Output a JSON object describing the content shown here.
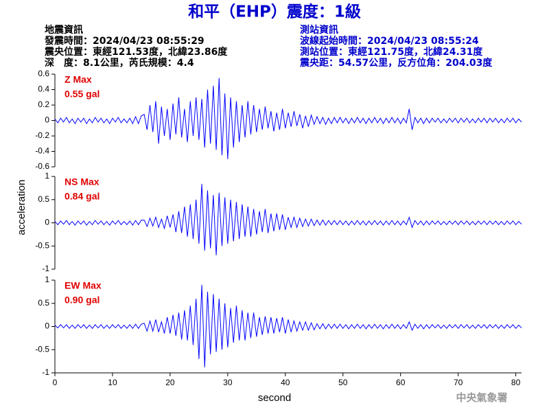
{
  "header": {
    "title": "和平（EHP）震度：1級",
    "left_info": [
      "地震資訊",
      "發震時間：2024/04/23 08:55:29",
      "震央位置：東經121.53度，北緯23.86度",
      "深　度：8.1公里，芮氏規模：4.4"
    ],
    "right_info": [
      "測站資訊",
      "波線起始時間：2024/04/23 08:55:24",
      "測站位置：東經121.75度，北緯24.31度",
      "震央距：54.57公里，反方位角：204.03度"
    ]
  },
  "axes": {
    "xlabel": "second",
    "ylabel": "acceleration"
  },
  "footer": "中央氣象署",
  "chart_data": [
    {
      "type": "line",
      "annotations": [
        "Z Max",
        "0.55 gal"
      ],
      "xlim": [
        0,
        81
      ],
      "ylim": [
        -0.6,
        0.6
      ],
      "yticks": [
        0.6,
        0.4,
        0.2,
        0,
        -0.2,
        -0.4,
        -0.6
      ],
      "x": [
        0,
        0.5,
        1,
        1.5,
        2,
        2.5,
        3,
        3.5,
        4,
        4.5,
        5,
        5.5,
        6,
        6.5,
        7,
        7.5,
        8,
        8.5,
        9,
        9.5,
        10,
        10.5,
        11,
        11.5,
        12,
        12.5,
        13,
        13.5,
        14,
        14.5,
        15,
        15.5,
        16,
        16.5,
        17,
        17.5,
        18,
        18.5,
        19,
        19.5,
        20,
        20.5,
        21,
        21.5,
        22,
        22.5,
        23,
        23.5,
        24,
        24.5,
        25,
        25.5,
        26,
        26.5,
        27,
        27.5,
        28,
        28.5,
        29,
        29.5,
        30,
        30.5,
        31,
        31.5,
        32,
        32.5,
        33,
        33.5,
        34,
        34.5,
        35,
        35.5,
        36,
        36.5,
        37,
        37.5,
        38,
        38.5,
        39,
        39.5,
        40,
        40.5,
        41,
        41.5,
        42,
        42.5,
        43,
        43.5,
        44,
        44.5,
        45,
        45.5,
        46,
        46.5,
        47,
        47.5,
        48,
        48.5,
        49,
        49.5,
        50,
        50.5,
        51,
        51.5,
        52,
        52.5,
        53,
        53.5,
        54,
        54.5,
        55,
        55.5,
        56,
        56.5,
        57,
        57.5,
        58,
        58.5,
        59,
        59.5,
        60,
        60.5,
        61,
        61.5,
        62,
        62.5,
        63,
        63.5,
        64,
        64.5,
        65,
        65.5,
        66,
        66.5,
        67,
        67.5,
        68,
        68.5,
        69,
        69.5,
        70,
        70.5,
        71,
        71.5,
        72,
        72.5,
        73,
        73.5,
        74,
        74.5,
        75,
        75.5,
        76,
        76.5,
        77,
        77.5,
        78,
        78.5,
        79,
        79.5,
        80,
        80.5,
        81
      ],
      "series": [
        {
          "color": "#0000ff",
          "values": [
            0.02,
            -0.03,
            0.03,
            -0.02,
            0.04,
            -0.03,
            0.02,
            -0.04,
            0.03,
            -0.02,
            0.03,
            -0.04,
            0.02,
            -0.03,
            0.04,
            -0.02,
            0.03,
            -0.03,
            0.02,
            -0.04,
            0.03,
            -0.02,
            0.04,
            -0.03,
            0.02,
            -0.03,
            0.03,
            -0.04,
            0.05,
            -0.04,
            0.06,
            0.08,
            -0.12,
            0.2,
            -0.15,
            0.25,
            -0.3,
            0.18,
            -0.2,
            0.15,
            -0.25,
            0.22,
            -0.18,
            0.3,
            -0.22,
            0.15,
            -0.28,
            0.25,
            -0.2,
            0.3,
            -0.25,
            0.28,
            -0.35,
            0.4,
            -0.3,
            0.45,
            -0.38,
            0.55,
            -0.45,
            0.35,
            -0.5,
            0.3,
            -0.35,
            0.25,
            -0.28,
            0.2,
            -0.22,
            0.25,
            -0.18,
            0.2,
            -0.15,
            0.15,
            -0.12,
            0.18,
            -0.1,
            0.12,
            -0.14,
            0.1,
            -0.12,
            0.15,
            -0.1,
            0.1,
            -0.08,
            0.12,
            -0.07,
            0.08,
            -0.1,
            0.06,
            -0.08,
            0.07,
            -0.05,
            0.05,
            -0.04,
            0.04,
            -0.05,
            0.03,
            -0.04,
            0.04,
            -0.03,
            0.04,
            -0.03,
            0.03,
            -0.04,
            0.03,
            -0.03,
            0.04,
            -0.03,
            0.03,
            -0.04,
            0.03,
            -0.03,
            0.04,
            -0.03,
            0.03,
            -0.04,
            0.03,
            -0.03,
            0.04,
            -0.03,
            0.03,
            -0.04,
            0.03,
            -0.03,
            0.15,
            -0.12,
            0.04,
            -0.03,
            0.03,
            -0.04,
            0.03,
            -0.03,
            0.03,
            -0.02,
            0.03,
            -0.03,
            0.02,
            -0.03,
            0.03,
            -0.02,
            0.03,
            -0.03,
            0.03,
            -0.02,
            0.03,
            -0.03,
            0.02,
            -0.03,
            0.03,
            -0.02,
            0.03,
            -0.03,
            0.03,
            -0.02,
            0.03,
            -0.03,
            0.02,
            -0.03,
            0.03,
            -0.02,
            0.03,
            -0.03,
            0.02,
            -0.02
          ]
        }
      ]
    },
    {
      "type": "line",
      "annotations": [
        "NS Max",
        "0.84 gal"
      ],
      "xlim": [
        0,
        81
      ],
      "ylim": [
        -1,
        1
      ],
      "yticks": [
        1,
        0.5,
        0,
        -0.5,
        -1
      ],
      "x": [
        0,
        0.5,
        1,
        1.5,
        2,
        2.5,
        3,
        3.5,
        4,
        4.5,
        5,
        5.5,
        6,
        6.5,
        7,
        7.5,
        8,
        8.5,
        9,
        9.5,
        10,
        10.5,
        11,
        11.5,
        12,
        12.5,
        13,
        13.5,
        14,
        14.5,
        15,
        15.5,
        16,
        16.5,
        17,
        17.5,
        18,
        18.5,
        19,
        19.5,
        20,
        20.5,
        21,
        21.5,
        22,
        22.5,
        23,
        23.5,
        24,
        24.5,
        25,
        25.5,
        26,
        26.5,
        27,
        27.5,
        28,
        28.5,
        29,
        29.5,
        30,
        30.5,
        31,
        31.5,
        32,
        32.5,
        33,
        33.5,
        34,
        34.5,
        35,
        35.5,
        36,
        36.5,
        37,
        37.5,
        38,
        38.5,
        39,
        39.5,
        40,
        40.5,
        41,
        41.5,
        42,
        42.5,
        43,
        43.5,
        44,
        44.5,
        45,
        45.5,
        46,
        46.5,
        47,
        47.5,
        48,
        48.5,
        49,
        49.5,
        50,
        50.5,
        51,
        51.5,
        52,
        52.5,
        53,
        53.5,
        54,
        54.5,
        55,
        55.5,
        56,
        56.5,
        57,
        57.5,
        58,
        58.5,
        59,
        59.5,
        60,
        60.5,
        61,
        61.5,
        62,
        62.5,
        63,
        63.5,
        64,
        64.5,
        65,
        65.5,
        66,
        66.5,
        67,
        67.5,
        68,
        68.5,
        69,
        69.5,
        70,
        70.5,
        71,
        71.5,
        72,
        72.5,
        73,
        73.5,
        74,
        74.5,
        75,
        75.5,
        76,
        76.5,
        77,
        77.5,
        78,
        78.5,
        79,
        79.5,
        80,
        80.5,
        81
      ],
      "series": [
        {
          "color": "#0000ff",
          "values": [
            0.03,
            -0.04,
            0.04,
            -0.03,
            0.05,
            -0.04,
            0.03,
            -0.05,
            0.04,
            -0.03,
            0.04,
            -0.05,
            0.03,
            -0.04,
            0.05,
            -0.03,
            0.04,
            -0.04,
            0.03,
            -0.05,
            0.04,
            -0.03,
            0.05,
            -0.04,
            0.03,
            -0.04,
            0.04,
            -0.05,
            0.05,
            -0.04,
            0.06,
            0.06,
            -0.08,
            0.1,
            -0.07,
            0.12,
            -0.1,
            0.08,
            -0.12,
            0.15,
            -0.1,
            0.18,
            -0.2,
            0.25,
            -0.22,
            0.35,
            -0.3,
            0.4,
            -0.35,
            0.5,
            -0.45,
            0.84,
            -0.6,
            0.7,
            -0.55,
            0.6,
            -0.7,
            0.65,
            -0.5,
            0.55,
            -0.45,
            0.5,
            -0.4,
            0.45,
            -0.35,
            0.4,
            -0.3,
            0.35,
            -0.3,
            0.3,
            -0.25,
            0.25,
            -0.2,
            0.3,
            -0.22,
            0.2,
            -0.18,
            0.2,
            -0.15,
            0.18,
            -0.15,
            0.12,
            -0.1,
            0.12,
            -0.1,
            0.1,
            -0.08,
            0.08,
            -0.07,
            0.08,
            -0.06,
            0.06,
            -0.05,
            0.06,
            -0.05,
            0.05,
            -0.04,
            0.05,
            -0.04,
            0.05,
            -0.04,
            0.04,
            -0.05,
            0.04,
            -0.04,
            0.05,
            -0.04,
            0.04,
            -0.05,
            0.04,
            -0.04,
            0.05,
            -0.04,
            0.04,
            -0.05,
            0.04,
            -0.04,
            0.05,
            -0.04,
            0.04,
            -0.05,
            0.04,
            -0.04,
            0.12,
            -0.1,
            0.05,
            -0.04,
            0.04,
            -0.05,
            0.04,
            -0.04,
            0.04,
            -0.03,
            0.04,
            -0.04,
            0.03,
            -0.04,
            0.04,
            -0.03,
            0.04,
            -0.04,
            0.04,
            -0.03,
            0.04,
            -0.04,
            0.03,
            -0.04,
            0.04,
            -0.03,
            0.04,
            -0.04,
            0.04,
            -0.03,
            0.04,
            -0.04,
            0.03,
            -0.04,
            0.04,
            -0.03,
            0.04,
            -0.04,
            0.03,
            -0.03
          ]
        }
      ]
    },
    {
      "type": "line",
      "annotations": [
        "EW Max",
        "0.90 gal"
      ],
      "xlim": [
        0,
        81
      ],
      "ylim": [
        -1,
        1
      ],
      "yticks": [
        1,
        0.5,
        0,
        -0.5,
        -1
      ],
      "xticks": [
        0,
        10,
        20,
        30,
        40,
        50,
        60,
        70,
        80
      ],
      "x": [
        0,
        0.5,
        1,
        1.5,
        2,
        2.5,
        3,
        3.5,
        4,
        4.5,
        5,
        5.5,
        6,
        6.5,
        7,
        7.5,
        8,
        8.5,
        9,
        9.5,
        10,
        10.5,
        11,
        11.5,
        12,
        12.5,
        13,
        13.5,
        14,
        14.5,
        15,
        15.5,
        16,
        16.5,
        17,
        17.5,
        18,
        18.5,
        19,
        19.5,
        20,
        20.5,
        21,
        21.5,
        22,
        22.5,
        23,
        23.5,
        24,
        24.5,
        25,
        25.5,
        26,
        26.5,
        27,
        27.5,
        28,
        28.5,
        29,
        29.5,
        30,
        30.5,
        31,
        31.5,
        32,
        32.5,
        33,
        33.5,
        34,
        34.5,
        35,
        35.5,
        36,
        36.5,
        37,
        37.5,
        38,
        38.5,
        39,
        39.5,
        40,
        40.5,
        41,
        41.5,
        42,
        42.5,
        43,
        43.5,
        44,
        44.5,
        45,
        45.5,
        46,
        46.5,
        47,
        47.5,
        48,
        48.5,
        49,
        49.5,
        50,
        50.5,
        51,
        51.5,
        52,
        52.5,
        53,
        53.5,
        54,
        54.5,
        55,
        55.5,
        56,
        56.5,
        57,
        57.5,
        58,
        58.5,
        59,
        59.5,
        60,
        60.5,
        61,
        61.5,
        62,
        62.5,
        63,
        63.5,
        64,
        64.5,
        65,
        65.5,
        66,
        66.5,
        67,
        67.5,
        68,
        68.5,
        69,
        69.5,
        70,
        70.5,
        71,
        71.5,
        72,
        72.5,
        73,
        73.5,
        74,
        74.5,
        75,
        75.5,
        76,
        76.5,
        77,
        77.5,
        78,
        78.5,
        79,
        79.5,
        80,
        80.5,
        81
      ],
      "series": [
        {
          "color": "#0000ff",
          "values": [
            0.03,
            -0.03,
            0.04,
            -0.03,
            0.04,
            -0.04,
            0.03,
            -0.04,
            0.04,
            -0.03,
            0.04,
            -0.04,
            0.03,
            -0.04,
            0.04,
            -0.03,
            0.04,
            -0.04,
            0.03,
            -0.04,
            0.04,
            -0.03,
            0.04,
            -0.04,
            0.03,
            -0.04,
            0.04,
            -0.04,
            0.05,
            -0.04,
            0.05,
            0.07,
            -0.1,
            0.12,
            -0.1,
            0.15,
            -0.12,
            0.1,
            -0.15,
            0.2,
            -0.15,
            0.25,
            -0.2,
            0.3,
            -0.28,
            0.35,
            -0.3,
            0.45,
            -0.4,
            0.6,
            -0.7,
            0.9,
            -0.88,
            0.75,
            -0.6,
            0.7,
            -0.55,
            0.6,
            -0.5,
            0.5,
            -0.45,
            0.4,
            -0.35,
            0.45,
            -0.3,
            0.35,
            -0.3,
            0.3,
            -0.25,
            0.3,
            -0.22,
            0.2,
            -0.18,
            0.22,
            -0.15,
            0.2,
            -0.15,
            0.18,
            -0.12,
            0.2,
            -0.15,
            0.15,
            -0.12,
            0.12,
            -0.1,
            0.1,
            -0.08,
            0.1,
            -0.08,
            0.08,
            -0.07,
            0.06,
            -0.05,
            0.06,
            -0.05,
            0.05,
            -0.04,
            0.05,
            -0.04,
            0.05,
            -0.04,
            0.04,
            -0.05,
            0.04,
            -0.04,
            0.05,
            -0.04,
            0.04,
            -0.05,
            0.04,
            -0.04,
            0.05,
            -0.04,
            0.04,
            -0.05,
            0.04,
            -0.04,
            0.05,
            -0.04,
            0.04,
            -0.05,
            0.04,
            -0.04,
            0.1,
            -0.08,
            0.05,
            -0.04,
            0.04,
            -0.05,
            0.04,
            -0.04,
            0.04,
            -0.03,
            0.04,
            -0.04,
            0.03,
            -0.04,
            0.04,
            -0.03,
            0.04,
            -0.04,
            0.04,
            -0.03,
            0.04,
            -0.04,
            0.03,
            -0.04,
            0.04,
            -0.03,
            0.04,
            -0.04,
            0.04,
            -0.03,
            0.04,
            -0.04,
            0.03,
            -0.04,
            0.04,
            -0.03,
            0.04,
            -0.04,
            0.03,
            -0.03
          ]
        }
      ]
    }
  ]
}
